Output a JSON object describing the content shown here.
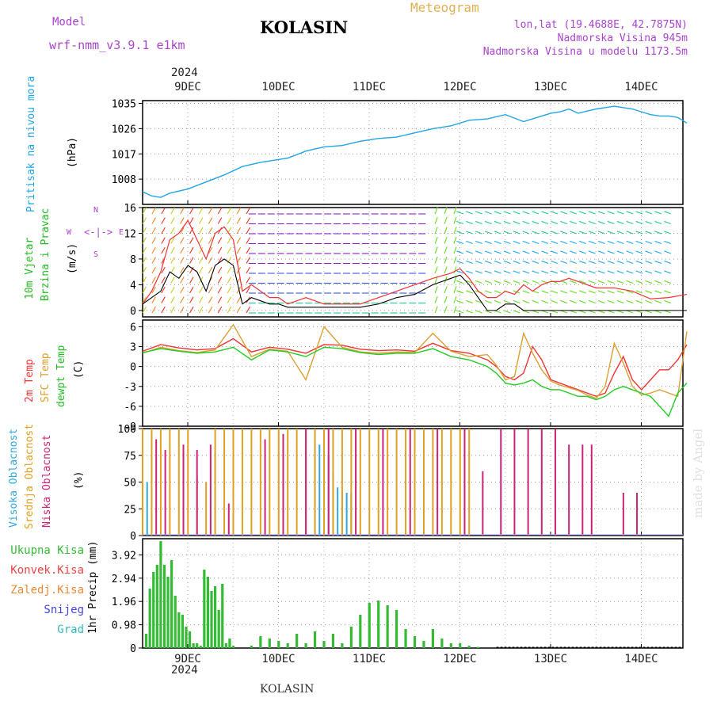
{
  "header": {
    "model_label": "Model",
    "model_name": "wrf-nmm_v3.9.1  e1km",
    "title": "KOLASIN",
    "meteogram_label": "Meteogram",
    "lonlat": "lon,lat (19.4688E, 42.7875N)",
    "altitude": "Nadmorska Visina 945m",
    "model_altitude": "Nadmorska Visina u modelu 1173.5m",
    "year_top": "2024",
    "year_bottom": "2024",
    "footer": "KOLASIN",
    "watermark": "made by Angel"
  },
  "colors": {
    "pressure": "#1fa5e6",
    "wind_label": "#22bb22",
    "t2m": "#ee3333",
    "sfc": "#dda030",
    "dew": "#22cc22",
    "high_cloud": "#2fa8e0",
    "mid_cloud": "#e0a020",
    "low_cloud": "#cc2277",
    "rain": "#33bb33",
    "konv": "#ee4444",
    "zaledj": "#ee8833",
    "snow": "#4444dd",
    "grad": "#33bbbb",
    "compass": "#aa44cc"
  },
  "panels": {
    "pressure": {
      "label1": "Pritisak na nivou mora",
      "label2": "(hPa)"
    },
    "wind": {
      "label1": "10m Vjetar",
      "label2": "Brzina i Pravac",
      "label3": "(m/s)",
      "compass_n": "N",
      "compass_w": "W",
      "compass_e": "E",
      "compass_s": "S"
    },
    "temp": {
      "label1": "2m Temp",
      "label2": "SFC Temp",
      "label3": "dewpt Temp",
      "label4": "(C)"
    },
    "cloud": {
      "label1": "Visoka Oblacnost",
      "label2": "Srednja Oblacnost",
      "label3": "Niska Oblacnost",
      "label4": "(%)"
    },
    "precip": {
      "ylabel": "1hr Precip (mm)",
      "legend": [
        "Ukupna Kisa",
        "Konvek.Kisa",
        "Zaledj.Kisa",
        "Snijeg",
        "Grad"
      ]
    }
  },
  "chart_data": [
    {
      "type": "line",
      "name": "pressure",
      "x_days": [
        0,
        0.1,
        0.2,
        0.3,
        0.5,
        0.7,
        0.9,
        1.1,
        1.3,
        1.6,
        1.8,
        2.0,
        2.2,
        2.4,
        2.6,
        2.8,
        3.0,
        3.2,
        3.4,
        3.6,
        3.8,
        4.0,
        4.2,
        4.4,
        4.5,
        4.6,
        4.7,
        4.8,
        5.0,
        5.2,
        5.4,
        5.6,
        5.7,
        5.8,
        5.9,
        6.0
      ],
      "values": [
        1003.5,
        1002,
        1001.5,
        1003,
        1004.5,
        1007,
        1009.5,
        1012.5,
        1014,
        1015.5,
        1018,
        1019.5,
        1020,
        1021.5,
        1022.5,
        1023,
        1024.5,
        1026,
        1027,
        1029,
        1029.5,
        1031,
        1028.5,
        1030.5,
        1031.5,
        1032,
        1033,
        1031.5,
        1033,
        1034,
        1033,
        1031,
        1030.5,
        1030.5,
        1030,
        1028
      ],
      "y_ticks": [
        1008,
        1017,
        1026,
        1035
      ],
      "ylim": [
        999,
        1036
      ]
    },
    {
      "type": "line",
      "name": "wind",
      "x_days": [
        0,
        0.1,
        0.2,
        0.3,
        0.4,
        0.5,
        0.6,
        0.7,
        0.8,
        0.9,
        1.0,
        1.1,
        1.2,
        1.3,
        1.4,
        1.5,
        1.6,
        1.8,
        2.0,
        2.2,
        2.4,
        2.6,
        2.8,
        3.0,
        3.2,
        3.4,
        3.5,
        3.6,
        3.7,
        3.8,
        3.9,
        4.0,
        4.1,
        4.2,
        4.3,
        4.4,
        4.5,
        4.6,
        4.7,
        4.8,
        5.0,
        5.2,
        5.4,
        5.6,
        5.8,
        6.0
      ],
      "values": [
        1,
        2,
        3,
        6,
        5,
        7,
        6,
        3,
        7,
        8,
        7,
        1,
        2,
        1.5,
        1,
        1,
        0.5,
        0.5,
        0.5,
        0.5,
        0.5,
        1,
        2,
        2.5,
        4,
        5,
        5.5,
        4,
        2,
        0,
        0,
        1,
        1,
        0,
        0,
        0,
        0,
        0,
        0,
        0,
        0,
        0,
        0,
        0,
        0,
        0
      ],
      "max_series": [
        1,
        3,
        6,
        11,
        12,
        14,
        11,
        8,
        12,
        13,
        11,
        3,
        4,
        3,
        2,
        2,
        1,
        2,
        1,
        1,
        1,
        2,
        3,
        4,
        5,
        5.8,
        6.5,
        5,
        3,
        2,
        2,
        3,
        2.5,
        4,
        3,
        4,
        4.5,
        4.5,
        5,
        4.5,
        3.5,
        3.5,
        3,
        1.8,
        2,
        2.5
      ],
      "y_ticks": [
        0,
        4,
        8,
        12,
        16
      ],
      "ylim": [
        -1,
        16
      ]
    },
    {
      "type": "line",
      "name": "temperature",
      "x_days": [
        0,
        0.2,
        0.4,
        0.6,
        0.8,
        1.0,
        1.2,
        1.4,
        1.6,
        1.8,
        2.0,
        2.2,
        2.4,
        2.6,
        2.8,
        3.0,
        3.2,
        3.4,
        3.6,
        3.8,
        3.9,
        4.0,
        4.1,
        4.2,
        4.3,
        4.4,
        4.5,
        4.6,
        4.7,
        4.8,
        4.9,
        5.0,
        5.1,
        5.2,
        5.3,
        5.4,
        5.5,
        5.6,
        5.7,
        5.8,
        5.9,
        6.0
      ],
      "series": [
        {
          "name": "2m Temp",
          "values": [
            2.3,
            3.3,
            2.8,
            2.5,
            2.7,
            4.2,
            2.2,
            2.9,
            2.6,
            2.0,
            3.3,
            3.2,
            2.6,
            2.4,
            2.5,
            2.3,
            3.5,
            2.4,
            2.0,
            1.0,
            0.0,
            -1.5,
            -2.0,
            -1.0,
            3.0,
            1.0,
            -2.0,
            -2.5,
            -3.0,
            -3.5,
            -4.0,
            -4.5,
            -4.0,
            -1.0,
            1.5,
            -2.0,
            -3.5,
            -2.0,
            -0.5,
            -0.5,
            1.0,
            3.3
          ]
        },
        {
          "name": "SFC Temp",
          "values": [
            2.0,
            2.9,
            2.4,
            2.1,
            2.5,
            6.3,
            1.5,
            2.6,
            2.3,
            -2.0,
            6.0,
            2.9,
            2.2,
            2.0,
            2.2,
            2.1,
            5.0,
            2.3,
            1.5,
            1.8,
            0.2,
            -2.0,
            -1.5,
            5.0,
            2.0,
            -0.5,
            -2.2,
            -2.8,
            -3.2,
            -3.6,
            -4.3,
            -4.8,
            -3.0,
            3.5,
            0.5,
            -3.0,
            -4.3,
            -4.0,
            -3.5,
            -4.0,
            -4.5,
            5.3
          ]
        },
        {
          "name": "dewpt Temp",
          "values": [
            2.1,
            2.7,
            2.3,
            2.0,
            2.2,
            2.9,
            1.0,
            2.5,
            2.2,
            1.5,
            2.9,
            2.7,
            2.1,
            1.8,
            2.0,
            2.0,
            2.7,
            1.5,
            1.0,
            0.0,
            -1.0,
            -2.5,
            -2.8,
            -2.5,
            -2.0,
            -3.0,
            -3.5,
            -3.5,
            -4.0,
            -4.5,
            -4.5,
            -5.0,
            -4.5,
            -3.5,
            -3.0,
            -3.5,
            -4.0,
            -4.5,
            -6.0,
            -7.5,
            -4.0,
            -2.5
          ]
        }
      ],
      "y_ticks": [
        -9,
        -6,
        -3,
        0,
        3,
        6
      ],
      "ylim": [
        -9,
        7
      ]
    },
    {
      "type": "bar",
      "name": "cloud",
      "series": [
        {
          "name": "Visoka Oblacnost",
          "x_days": [
            0.05,
            1.9,
            1.95,
            2.0,
            2.05,
            2.1,
            2.15,
            2.2,
            2.25,
            2.3
          ],
          "values": [
            50,
            90,
            85,
            80,
            75,
            60,
            45,
            40,
            40,
            40
          ]
        },
        {
          "name": "Srednja Oblacnost",
          "x_days": [
            0.0,
            0.1,
            0.2,
            0.3,
            0.4,
            0.5,
            0.6,
            0.7,
            0.8,
            0.9,
            1.0,
            1.1,
            1.2,
            1.3,
            1.4,
            1.5,
            1.6,
            1.7,
            1.8,
            1.9,
            2.0,
            2.1,
            2.2,
            2.3,
            2.4,
            2.5,
            2.6,
            2.7,
            2.8,
            2.9,
            3.0,
            3.1,
            3.2,
            3.3,
            3.4,
            3.5,
            3.6
          ],
          "values": [
            100,
            100,
            100,
            100,
            100,
            100,
            55,
            50,
            100,
            100,
            100,
            100,
            100,
            100,
            100,
            100,
            100,
            100,
            100,
            100,
            100,
            100,
            100,
            100,
            100,
            100,
            100,
            100,
            100,
            100,
            100,
            100,
            100,
            100,
            100,
            100,
            100
          ]
        },
        {
          "name": "Niska Oblacnost",
          "x_days": [
            0.15,
            0.25,
            0.45,
            0.6,
            0.75,
            0.95,
            1.35,
            1.55,
            1.8,
            2.05,
            2.35,
            2.65,
            2.95,
            3.25,
            3.55,
            3.75,
            3.95,
            4.1,
            4.25,
            4.4,
            4.55,
            4.7,
            4.85,
            4.95,
            5.3,
            5.45,
            5.5
          ],
          "values": [
            90,
            80,
            85,
            80,
            85,
            30,
            90,
            95,
            100,
            100,
            100,
            100,
            100,
            100,
            100,
            60,
            100,
            100,
            100,
            100,
            100,
            85,
            85,
            85,
            40,
            40,
            0
          ]
        }
      ],
      "y_ticks": [
        0,
        25,
        50,
        75,
        100
      ],
      "ylim": [
        0,
        100
      ]
    },
    {
      "type": "bar",
      "name": "precip",
      "x_days": [
        0.04,
        0.08,
        0.12,
        0.16,
        0.2,
        0.24,
        0.28,
        0.32,
        0.36,
        0.4,
        0.44,
        0.48,
        0.52,
        0.56,
        0.6,
        0.64,
        0.68,
        0.72,
        0.76,
        0.8,
        0.84,
        0.88,
        0.92,
        0.96,
        1.0,
        1.2,
        1.3,
        1.4,
        1.5,
        1.6,
        1.7,
        1.8,
        1.9,
        2.0,
        2.1,
        2.2,
        2.3,
        2.4,
        2.5,
        2.6,
        2.7,
        2.8,
        2.9,
        3.0,
        3.1,
        3.2,
        3.3,
        3.4,
        3.5,
        3.6,
        3.7
      ],
      "values": [
        0.6,
        2.5,
        3.2,
        3.5,
        4.5,
        3.5,
        3.0,
        3.7,
        2.2,
        1.5,
        1.4,
        0.9,
        0.7,
        0.2,
        0.2,
        0.1,
        3.3,
        3.0,
        2.4,
        2.6,
        1.6,
        2.7,
        0.2,
        0.4,
        0.1,
        0.1,
        0.5,
        0.4,
        0.3,
        0.2,
        0.6,
        0.2,
        0.7,
        0.3,
        0.6,
        0.2,
        0.9,
        1.4,
        1.9,
        2.0,
        1.8,
        1.6,
        0.8,
        0.5,
        0.3,
        0.8,
        0.4,
        0.2,
        0.2,
        0.1,
        0.05
      ],
      "y_ticks": [
        0,
        0.98,
        1.96,
        2.94,
        3.92
      ],
      "ylim": [
        0,
        4.6
      ]
    }
  ],
  "x_axis": {
    "start_day_offset": -0.5,
    "day_labels": [
      "9DEC",
      "10DEC",
      "11DEC",
      "12DEC",
      "13DEC",
      "14DEC"
    ]
  }
}
